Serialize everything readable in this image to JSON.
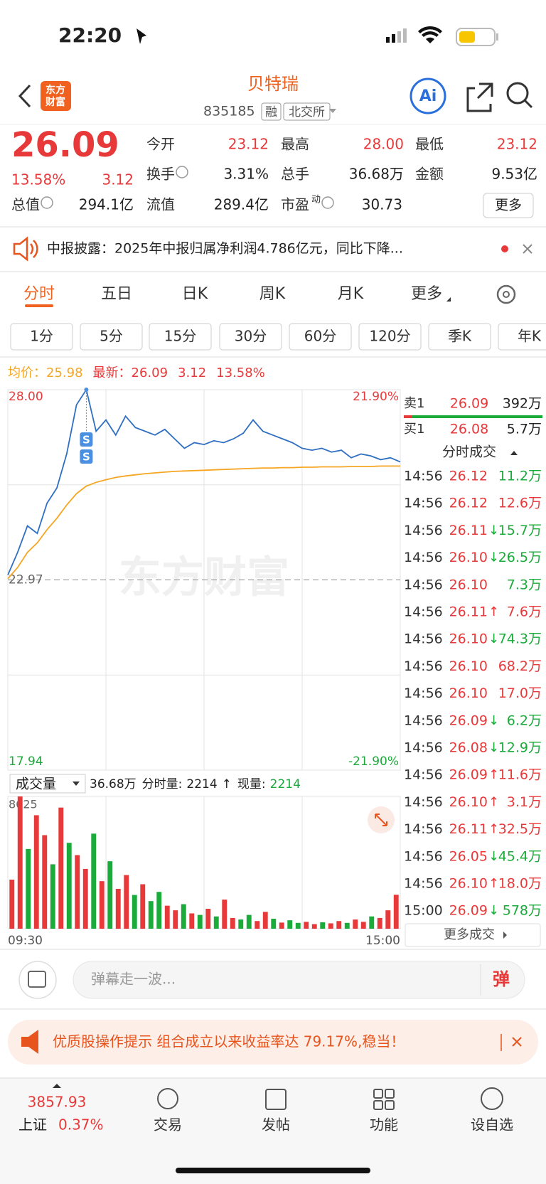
{
  "status_bar": {
    "time": "22:20"
  },
  "header": {
    "logo": [
      "东方",
      "财富"
    ],
    "title": "贝特瑞",
    "code": "835185",
    "tags": [
      "融",
      "北交所"
    ]
  },
  "quote": {
    "price": "26.09",
    "change_pct": "13.58%",
    "change": "3.12",
    "stats": [
      {
        "label": "今开",
        "value": "23.12",
        "up": true
      },
      {
        "label": "最高",
        "value": "28.00",
        "up": true
      },
      {
        "label": "最低",
        "value": "23.12",
        "up": true
      },
      {
        "label": "换手",
        "value": "3.31%",
        "info": true
      },
      {
        "label": "总手",
        "value": "36.68万"
      },
      {
        "label": "金额",
        "value": "9.53亿"
      },
      {
        "label": "总值",
        "value": "294.1亿",
        "info": true
      },
      {
        "label": "流值",
        "value": "289.4亿"
      },
      {
        "label": "市盈",
        "sup": "动",
        "value": "30.73",
        "info": true
      }
    ],
    "more": "更多"
  },
  "notice": {
    "text": "中报披露：2025年中报归属净利润4.786亿元，同比下降..."
  },
  "tabs": {
    "items": [
      "分时",
      "五日",
      "日K",
      "周K",
      "月K",
      "更多"
    ],
    "active": 0
  },
  "periods": [
    "1分",
    "5分",
    "15分",
    "30分",
    "60分",
    "120分",
    "季K",
    "年K"
  ],
  "order_book": [
    {
      "label": "卖1",
      "price": "26.09",
      "volume": "392万"
    },
    {
      "label": "买1",
      "price": "26.08",
      "volume": "5.7万"
    }
  ],
  "trades": {
    "title": "分时成交",
    "more": "更多成交",
    "rows": [
      {
        "time": "14:56",
        "price": "26.12",
        "volume": "11.2万",
        "up": false
      },
      {
        "time": "14:56",
        "price": "26.12",
        "volume": "12.6万",
        "up": true
      },
      {
        "time": "14:56",
        "price": "26.11",
        "arrow": "↓",
        "volume": "15.7万",
        "up": false
      },
      {
        "time": "14:56",
        "price": "26.10",
        "arrow": "↓",
        "volume": "26.5万",
        "up": false
      },
      {
        "time": "14:56",
        "price": "26.10",
        "volume": "7.3万",
        "up": false
      },
      {
        "time": "14:56",
        "price": "26.11",
        "arrow": "↑",
        "volume": "7.6万",
        "up": true
      },
      {
        "time": "14:56",
        "price": "26.10",
        "arrow": "↓",
        "volume": "74.3万",
        "up": false
      },
      {
        "time": "14:56",
        "price": "26.10",
        "volume": "68.2万",
        "up": true
      },
      {
        "time": "14:56",
        "price": "26.10",
        "volume": "17.0万",
        "up": true
      },
      {
        "time": "14:56",
        "price": "26.09",
        "arrow": "↓",
        "volume": "6.2万",
        "up": false
      },
      {
        "time": "14:56",
        "price": "26.08",
        "arrow": "↓",
        "volume": "12.9万",
        "up": false
      },
      {
        "time": "14:56",
        "price": "26.09",
        "arrow": "↑",
        "volume": "11.6万",
        "up": true
      },
      {
        "time": "14:56",
        "price": "26.10",
        "arrow": "↑",
        "volume": "3.1万",
        "up": true
      },
      {
        "time": "14:56",
        "price": "26.11",
        "arrow": "↑",
        "volume": "32.5万",
        "up": true
      },
      {
        "time": "14:56",
        "price": "26.05",
        "arrow": "↓",
        "volume": "45.4万",
        "up": false
      },
      {
        "time": "14:56",
        "price": "26.10",
        "arrow": "↑",
        "volume": "18.0万",
        "up": true
      },
      {
        "time": "15:00",
        "price": "26.09",
        "arrow": "↓",
        "volume": "578万",
        "up": false
      }
    ]
  },
  "comment": {
    "placeholder": "弹幕走一波...",
    "button": "弹"
  },
  "banner": {
    "text": "优质股操作提示 组合成立以来收益率达 79.17%,稳当！"
  },
  "tab_bar": {
    "index": {
      "value": "3857.93",
      "name": "上证",
      "change": "0.37%"
    },
    "items": [
      "交易",
      "发帖",
      "功能",
      "设自选"
    ]
  },
  "chart_data": [
    {
      "type": "line",
      "watermark": "东方财富",
      "markers": [
        "S",
        "S"
      ],
      "peak_index": 8,
      "info": {
        "avg": 25.98,
        "latest": 26.09,
        "change": 3.12,
        "change_pct": "13.58%"
      },
      "ylim": [
        17.94,
        28
      ],
      "yticks": [
        {
          "value": 28,
          "label": "28.00"
        },
        22.97,
        17.94
      ],
      "y2lim": [
        -21.9,
        21.9
      ],
      "y2ticks": [
        {
          "value": 21.9,
          "label": "21.90%"
        },
        {
          "value": -21.9,
          "label": "-21.90%"
        }
      ],
      "series": [
        {
          "name": "均价：",
          "color": "#f5a623",
          "values": [
            23.0,
            23.3,
            23.7,
            23.95,
            24.3,
            24.6,
            24.95,
            25.25,
            25.45,
            25.55,
            25.62,
            25.68,
            25.72,
            25.75,
            25.78,
            25.8,
            25.82,
            25.84,
            25.85,
            25.86,
            25.87,
            25.88,
            25.89,
            25.9,
            25.91,
            25.92,
            25.93,
            25.93,
            25.94,
            25.94,
            25.95,
            25.95,
            25.96,
            25.96,
            25.96,
            25.97,
            25.97,
            25.97,
            25.98,
            25.98,
            25.98
          ]
        },
        {
          "name": "最新：",
          "color": "#2f6fc2",
          "values": [
            23.1,
            23.7,
            24.4,
            24.2,
            25.0,
            25.4,
            26.3,
            27.6,
            28.0,
            26.9,
            27.2,
            26.8,
            27.3,
            27.0,
            26.9,
            26.8,
            26.95,
            26.7,
            26.45,
            26.6,
            26.55,
            26.65,
            26.6,
            26.7,
            26.85,
            27.2,
            26.9,
            26.8,
            26.7,
            26.6,
            26.45,
            26.4,
            26.45,
            26.35,
            26.4,
            26.2,
            26.3,
            26.25,
            26.15,
            26.2,
            26.09
          ]
        }
      ]
    },
    {
      "type": "bar",
      "title": "成交量",
      "ylim": [
        0,
        8625
      ],
      "yticks": [
        8625
      ],
      "colors": {
        "up": "#e8393a",
        "down": "#1aab3b"
      },
      "time_labels": [
        "09:30",
        "15:00"
      ],
      "header": {
        "total": "36.68万",
        "period_label": "分时量:",
        "period": 2214,
        "arrow": "↑",
        "now_label": "现量:",
        "now": 2214
      },
      "values": [
        3200,
        8625,
        5200,
        7400,
        6100,
        4200,
        7900,
        5600,
        4800,
        3900,
        6200,
        3100,
        4400,
        2600,
        3500,
        2200,
        2900,
        1800,
        2400,
        1500,
        1200,
        1600,
        1000,
        900,
        1300,
        800,
        1900,
        700,
        600,
        900,
        500,
        1100,
        650,
        400,
        550,
        380,
        450,
        300,
        420,
        350,
        500,
        380,
        600,
        450,
        800,
        700,
        1200,
        2214
      ],
      "up": [
        true,
        true,
        false,
        true,
        true,
        false,
        true,
        false,
        true,
        true,
        false,
        true,
        false,
        true,
        true,
        false,
        true,
        false,
        false,
        true,
        true,
        false,
        true,
        false,
        true,
        false,
        true,
        true,
        false,
        false,
        true,
        true,
        false,
        true,
        false,
        false,
        true,
        true,
        false,
        true,
        true,
        false,
        true,
        true,
        false,
        true,
        true,
        true
      ]
    }
  ]
}
